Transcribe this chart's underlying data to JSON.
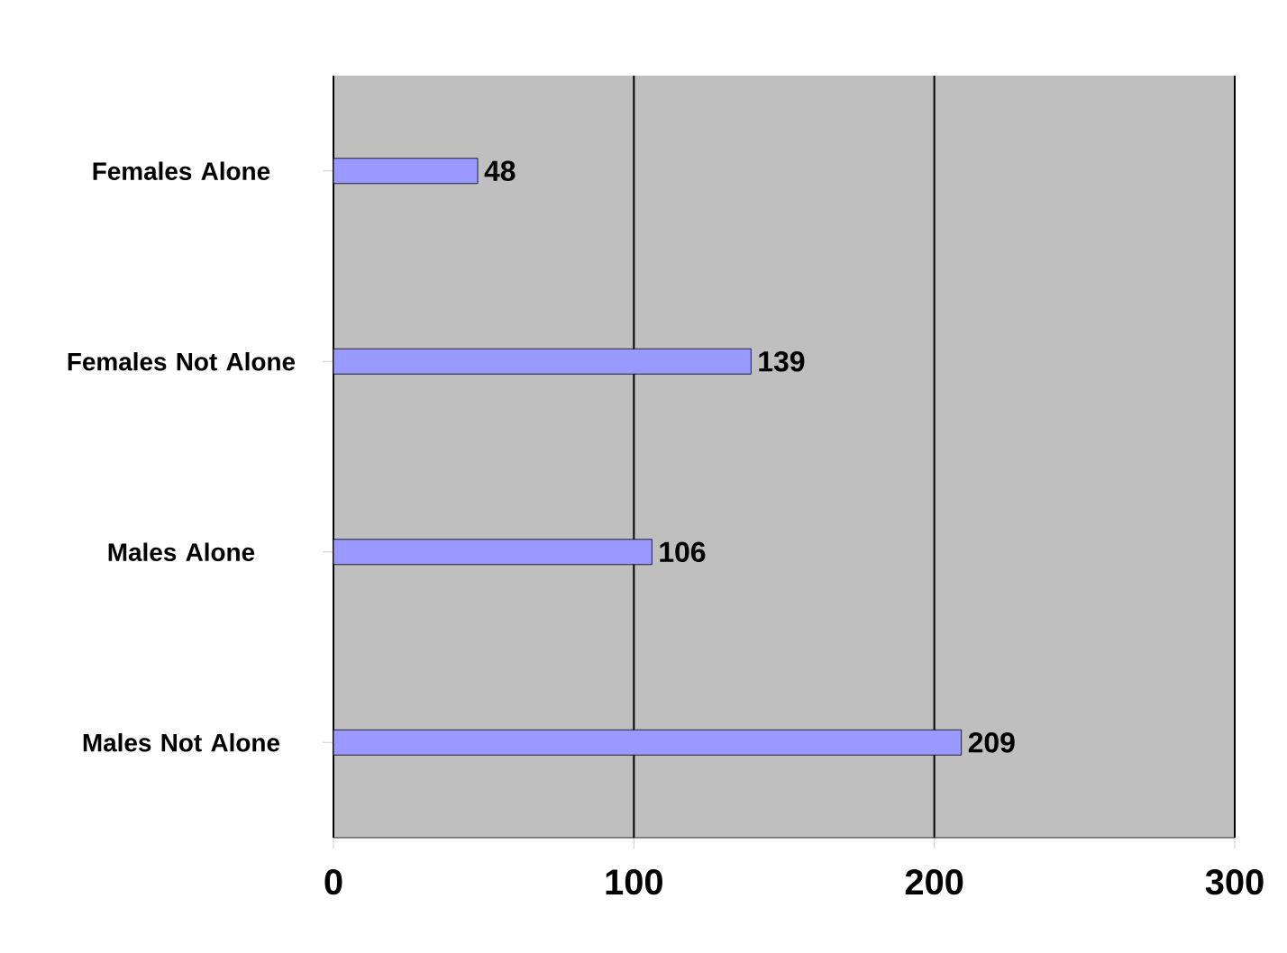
{
  "chart_data": {
    "type": "bar",
    "orientation": "horizontal",
    "categories": [
      "Females Alone",
      "Females Not Alone",
      "Males Alone",
      "Males Not Alone"
    ],
    "values": [
      48,
      139,
      106,
      209
    ],
    "color": "#9999ff",
    "xlim": [
      0,
      300
    ],
    "xticks": [
      0,
      100,
      200,
      300
    ],
    "grid": "x",
    "data_labels": true
  }
}
